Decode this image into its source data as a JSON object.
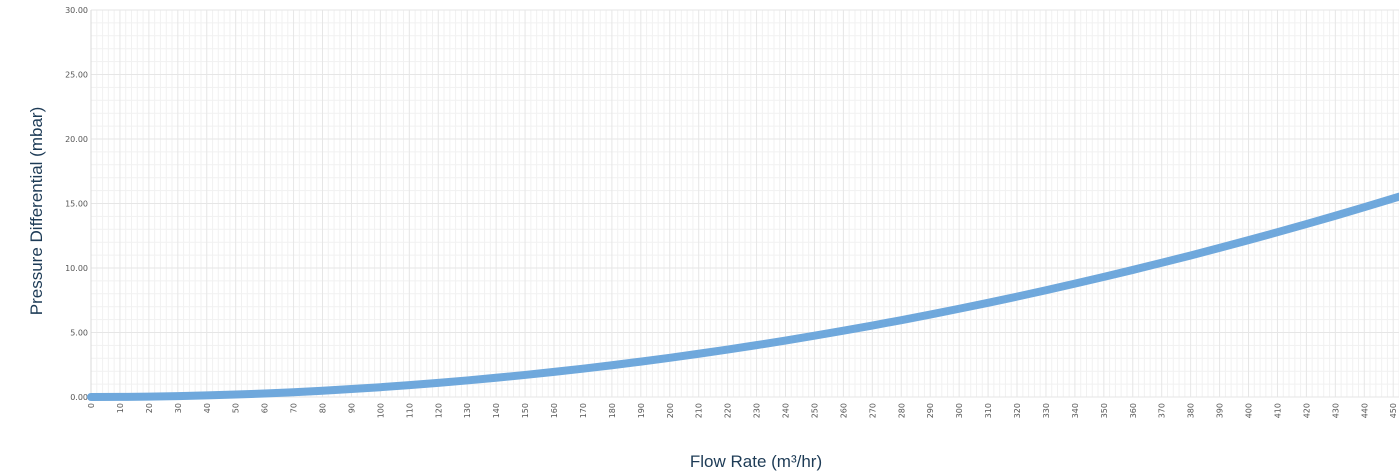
{
  "chart_data": {
    "type": "line",
    "title": "",
    "xlabel": "Flow Rate (m³/hr)",
    "ylabel": "Pressure Differential (mbar)",
    "xlim": [
      0,
      452
    ],
    "ylim": [
      0,
      30
    ],
    "x_ticks": [
      0,
      10,
      20,
      30,
      40,
      50,
      60,
      70,
      80,
      90,
      100,
      110,
      120,
      130,
      140,
      150,
      160,
      170,
      180,
      190,
      200,
      210,
      220,
      230,
      240,
      250,
      260,
      270,
      280,
      290,
      300,
      310,
      320,
      330,
      340,
      350,
      360,
      370,
      380,
      390,
      400,
      410,
      420,
      430,
      440,
      450
    ],
    "y_ticks": [
      "0.00",
      "5.00",
      "10.00",
      "15.00",
      "20.00",
      "25.00",
      "30.00"
    ],
    "grid": true,
    "colors": {
      "line": "#6fa8dc",
      "grid": "#e6e6e6",
      "axis_title": "#1d3b56"
    },
    "series": [
      {
        "x": [
          0,
          10,
          20,
          30,
          40,
          50,
          60,
          70,
          80,
          90,
          100,
          110,
          120,
          130,
          140,
          150,
          160,
          170,
          180,
          190,
          200,
          210,
          220,
          230,
          240,
          250,
          260,
          270,
          280,
          290,
          300,
          310,
          320,
          330,
          340,
          350,
          360,
          370,
          380,
          390,
          400,
          410,
          420,
          430,
          440,
          450,
          452
        ],
        "y": [
          0.0,
          0.0076,
          0.03,
          0.069,
          0.122,
          0.19,
          0.274,
          0.372,
          0.486,
          0.616,
          0.76,
          0.92,
          1.094,
          1.284,
          1.49,
          1.71,
          1.946,
          2.196,
          2.462,
          2.744,
          3.04,
          3.352,
          3.678,
          4.02,
          4.378,
          4.75,
          5.138,
          5.54,
          5.958,
          6.392,
          6.84,
          7.304,
          7.782,
          8.276,
          8.786,
          9.31,
          9.85,
          10.404,
          10.974,
          11.56,
          12.16,
          12.776,
          13.406,
          14.052,
          14.714,
          15.39,
          15.53
        ]
      }
    ]
  }
}
